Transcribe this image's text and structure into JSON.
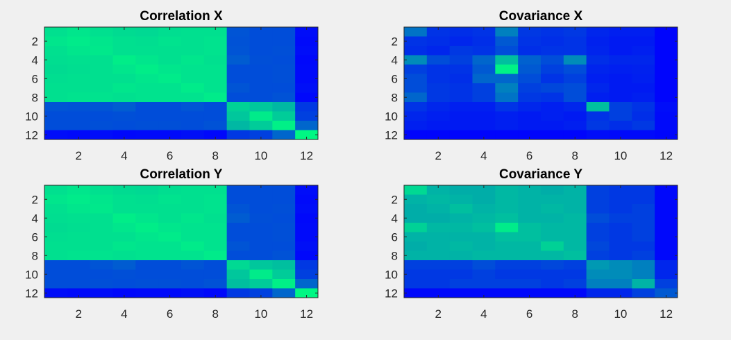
{
  "chart_data": [
    {
      "type": "heatmap",
      "title": "Correlation X",
      "x": [
        1,
        2,
        3,
        4,
        5,
        6,
        7,
        8,
        9,
        10,
        11,
        12
      ],
      "y": [
        1,
        2,
        3,
        4,
        5,
        6,
        7,
        8,
        9,
        10,
        11,
        12
      ],
      "xticks": [
        "2",
        "4",
        "6",
        "8",
        "10",
        "12"
      ],
      "yticks": [
        "2",
        "4",
        "6",
        "8",
        "10",
        "12"
      ],
      "xlim": [
        0.5,
        12.5
      ],
      "ylim": [
        0.5,
        12.5
      ],
      "y_direction": "reversed",
      "colormap": "winter",
      "clim": [
        0,
        1
      ],
      "values": [
        [
          0.88,
          0.9,
          0.88,
          0.86,
          0.85,
          0.87,
          0.88,
          0.88,
          0.33,
          0.3,
          0.3,
          0.05
        ],
        [
          0.9,
          0.92,
          0.9,
          0.88,
          0.87,
          0.89,
          0.88,
          0.89,
          0.32,
          0.3,
          0.3,
          0.04
        ],
        [
          0.88,
          0.9,
          0.91,
          0.88,
          0.88,
          0.88,
          0.88,
          0.89,
          0.33,
          0.3,
          0.31,
          0.05
        ],
        [
          0.87,
          0.88,
          0.88,
          0.93,
          0.9,
          0.88,
          0.9,
          0.88,
          0.36,
          0.31,
          0.3,
          0.03
        ],
        [
          0.86,
          0.87,
          0.88,
          0.9,
          0.93,
          0.9,
          0.89,
          0.89,
          0.3,
          0.3,
          0.31,
          0.04
        ],
        [
          0.87,
          0.88,
          0.88,
          0.88,
          0.9,
          0.92,
          0.89,
          0.89,
          0.3,
          0.3,
          0.31,
          0.04
        ],
        [
          0.88,
          0.88,
          0.88,
          0.9,
          0.89,
          0.89,
          0.92,
          0.89,
          0.33,
          0.3,
          0.3,
          0.06
        ],
        [
          0.88,
          0.89,
          0.89,
          0.88,
          0.89,
          0.89,
          0.89,
          0.92,
          0.3,
          0.3,
          0.32,
          0.03
        ],
        [
          0.33,
          0.32,
          0.33,
          0.36,
          0.3,
          0.3,
          0.33,
          0.3,
          0.82,
          0.78,
          0.72,
          0.22
        ],
        [
          0.3,
          0.3,
          0.3,
          0.31,
          0.3,
          0.3,
          0.3,
          0.3,
          0.78,
          0.92,
          0.8,
          0.25
        ],
        [
          0.3,
          0.3,
          0.31,
          0.3,
          0.31,
          0.31,
          0.3,
          0.32,
          0.72,
          0.8,
          0.94,
          0.4
        ],
        [
          0.05,
          0.04,
          0.05,
          0.03,
          0.04,
          0.04,
          0.06,
          0.03,
          0.22,
          0.25,
          0.4,
          0.97
        ]
      ]
    },
    {
      "type": "heatmap",
      "title": "Covariance X",
      "x": [
        1,
        2,
        3,
        4,
        5,
        6,
        7,
        8,
        9,
        10,
        11,
        12
      ],
      "y": [
        1,
        2,
        3,
        4,
        5,
        6,
        7,
        8,
        9,
        10,
        11,
        12
      ],
      "xticks": [
        "2",
        "4",
        "6",
        "8",
        "10",
        "12"
      ],
      "yticks": [
        "2",
        "4",
        "6",
        "8",
        "10",
        "12"
      ],
      "xlim": [
        0.5,
        12.5
      ],
      "ylim": [
        0.5,
        12.5
      ],
      "y_direction": "reversed",
      "colormap": "winter",
      "clim": [
        0,
        1
      ],
      "values": [
        [
          0.45,
          0.2,
          0.18,
          0.2,
          0.5,
          0.22,
          0.2,
          0.22,
          0.15,
          0.12,
          0.12,
          0.02
        ],
        [
          0.2,
          0.18,
          0.15,
          0.18,
          0.35,
          0.2,
          0.18,
          0.2,
          0.13,
          0.1,
          0.1,
          0.02
        ],
        [
          0.18,
          0.15,
          0.22,
          0.2,
          0.3,
          0.18,
          0.2,
          0.2,
          0.14,
          0.1,
          0.12,
          0.02
        ],
        [
          0.55,
          0.3,
          0.25,
          0.4,
          0.75,
          0.38,
          0.3,
          0.55,
          0.18,
          0.15,
          0.15,
          0.02
        ],
        [
          0.25,
          0.2,
          0.2,
          0.35,
          0.95,
          0.35,
          0.25,
          0.3,
          0.14,
          0.12,
          0.13,
          0.02
        ],
        [
          0.3,
          0.2,
          0.18,
          0.4,
          0.4,
          0.3,
          0.2,
          0.25,
          0.12,
          0.1,
          0.12,
          0.02
        ],
        [
          0.3,
          0.22,
          0.2,
          0.25,
          0.5,
          0.25,
          0.28,
          0.3,
          0.15,
          0.1,
          0.1,
          0.02
        ],
        [
          0.4,
          0.22,
          0.2,
          0.25,
          0.45,
          0.22,
          0.2,
          0.3,
          0.12,
          0.1,
          0.12,
          0.02
        ],
        [
          0.2,
          0.15,
          0.12,
          0.12,
          0.2,
          0.15,
          0.12,
          0.15,
          0.75,
          0.25,
          0.2,
          0.05
        ],
        [
          0.15,
          0.12,
          0.1,
          0.1,
          0.12,
          0.1,
          0.12,
          0.1,
          0.2,
          0.25,
          0.18,
          0.04
        ],
        [
          0.12,
          0.1,
          0.1,
          0.1,
          0.12,
          0.1,
          0.1,
          0.12,
          0.22,
          0.18,
          0.22,
          0.04
        ],
        [
          0.02,
          0.02,
          0.02,
          0.02,
          0.02,
          0.02,
          0.02,
          0.02,
          0.05,
          0.04,
          0.04,
          0.02
        ]
      ]
    },
    {
      "type": "heatmap",
      "title": "Correlation Y",
      "x": [
        1,
        2,
        3,
        4,
        5,
        6,
        7,
        8,
        9,
        10,
        11,
        12
      ],
      "y": [
        1,
        2,
        3,
        4,
        5,
        6,
        7,
        8,
        9,
        10,
        11,
        12
      ],
      "xticks": [
        "2",
        "4",
        "6",
        "8",
        "10",
        "12"
      ],
      "yticks": [
        "2",
        "4",
        "6",
        "8",
        "10",
        "12"
      ],
      "xlim": [
        0.5,
        12.5
      ],
      "ylim": [
        0.5,
        12.5
      ],
      "y_direction": "reversed",
      "colormap": "winter",
      "clim": [
        0,
        1
      ],
      "values": [
        [
          0.88,
          0.9,
          0.88,
          0.86,
          0.85,
          0.87,
          0.88,
          0.88,
          0.3,
          0.3,
          0.3,
          0.05
        ],
        [
          0.9,
          0.92,
          0.9,
          0.88,
          0.87,
          0.89,
          0.88,
          0.89,
          0.3,
          0.3,
          0.3,
          0.04
        ],
        [
          0.88,
          0.9,
          0.91,
          0.88,
          0.88,
          0.88,
          0.88,
          0.89,
          0.33,
          0.3,
          0.31,
          0.05
        ],
        [
          0.87,
          0.88,
          0.88,
          0.93,
          0.9,
          0.88,
          0.9,
          0.88,
          0.36,
          0.31,
          0.3,
          0.03
        ],
        [
          0.86,
          0.87,
          0.88,
          0.9,
          0.93,
          0.9,
          0.89,
          0.89,
          0.3,
          0.3,
          0.31,
          0.04
        ],
        [
          0.87,
          0.88,
          0.88,
          0.88,
          0.9,
          0.92,
          0.89,
          0.89,
          0.3,
          0.3,
          0.31,
          0.04
        ],
        [
          0.88,
          0.88,
          0.88,
          0.9,
          0.89,
          0.89,
          0.92,
          0.89,
          0.33,
          0.3,
          0.3,
          0.06
        ],
        [
          0.88,
          0.89,
          0.89,
          0.88,
          0.89,
          0.89,
          0.89,
          0.92,
          0.3,
          0.3,
          0.32,
          0.03
        ],
        [
          0.3,
          0.3,
          0.33,
          0.36,
          0.3,
          0.3,
          0.33,
          0.3,
          0.85,
          0.78,
          0.75,
          0.22
        ],
        [
          0.3,
          0.3,
          0.3,
          0.31,
          0.3,
          0.3,
          0.3,
          0.3,
          0.78,
          0.92,
          0.8,
          0.25
        ],
        [
          0.3,
          0.3,
          0.31,
          0.3,
          0.31,
          0.31,
          0.3,
          0.32,
          0.75,
          0.8,
          0.94,
          0.4
        ],
        [
          0.05,
          0.04,
          0.05,
          0.03,
          0.04,
          0.04,
          0.06,
          0.03,
          0.22,
          0.25,
          0.4,
          0.97
        ]
      ]
    },
    {
      "type": "heatmap",
      "title": "Covariance Y",
      "x": [
        1,
        2,
        3,
        4,
        5,
        6,
        7,
        8,
        9,
        10,
        11,
        12
      ],
      "y": [
        1,
        2,
        3,
        4,
        5,
        6,
        7,
        8,
        9,
        10,
        11,
        12
      ],
      "xticks": [
        "2",
        "4",
        "6",
        "8",
        "10",
        "12"
      ],
      "yticks": [
        "2",
        "4",
        "6",
        "8",
        "10",
        "12"
      ],
      "xlim": [
        0.5,
        12.5
      ],
      "ylim": [
        0.5,
        12.5
      ],
      "y_direction": "reversed",
      "colormap": "winter",
      "clim": [
        0,
        1
      ],
      "values": [
        [
          0.85,
          0.7,
          0.68,
          0.68,
          0.72,
          0.7,
          0.68,
          0.7,
          0.25,
          0.22,
          0.22,
          0.03
        ],
        [
          0.7,
          0.72,
          0.7,
          0.68,
          0.72,
          0.7,
          0.7,
          0.7,
          0.25,
          0.22,
          0.22,
          0.03
        ],
        [
          0.68,
          0.7,
          0.75,
          0.7,
          0.72,
          0.7,
          0.72,
          0.7,
          0.25,
          0.22,
          0.25,
          0.03
        ],
        [
          0.68,
          0.68,
          0.7,
          0.72,
          0.75,
          0.7,
          0.7,
          0.72,
          0.3,
          0.25,
          0.25,
          0.03
        ],
        [
          0.82,
          0.72,
          0.72,
          0.75,
          0.92,
          0.75,
          0.72,
          0.72,
          0.25,
          0.22,
          0.25,
          0.03
        ],
        [
          0.7,
          0.7,
          0.7,
          0.7,
          0.75,
          0.75,
          0.72,
          0.72,
          0.25,
          0.22,
          0.25,
          0.03
        ],
        [
          0.68,
          0.7,
          0.72,
          0.7,
          0.72,
          0.72,
          0.82,
          0.72,
          0.28,
          0.22,
          0.22,
          0.03
        ],
        [
          0.7,
          0.7,
          0.7,
          0.72,
          0.72,
          0.72,
          0.72,
          0.75,
          0.25,
          0.22,
          0.25,
          0.03
        ],
        [
          0.25,
          0.25,
          0.25,
          0.3,
          0.25,
          0.25,
          0.28,
          0.25,
          0.6,
          0.55,
          0.5,
          0.15
        ],
        [
          0.22,
          0.22,
          0.22,
          0.25,
          0.22,
          0.22,
          0.22,
          0.22,
          0.55,
          0.55,
          0.5,
          0.15
        ],
        [
          0.22,
          0.22,
          0.25,
          0.25,
          0.25,
          0.25,
          0.22,
          0.25,
          0.5,
          0.5,
          0.7,
          0.25
        ],
        [
          0.03,
          0.03,
          0.03,
          0.03,
          0.03,
          0.03,
          0.03,
          0.03,
          0.15,
          0.15,
          0.25,
          0.35
        ]
      ]
    }
  ]
}
